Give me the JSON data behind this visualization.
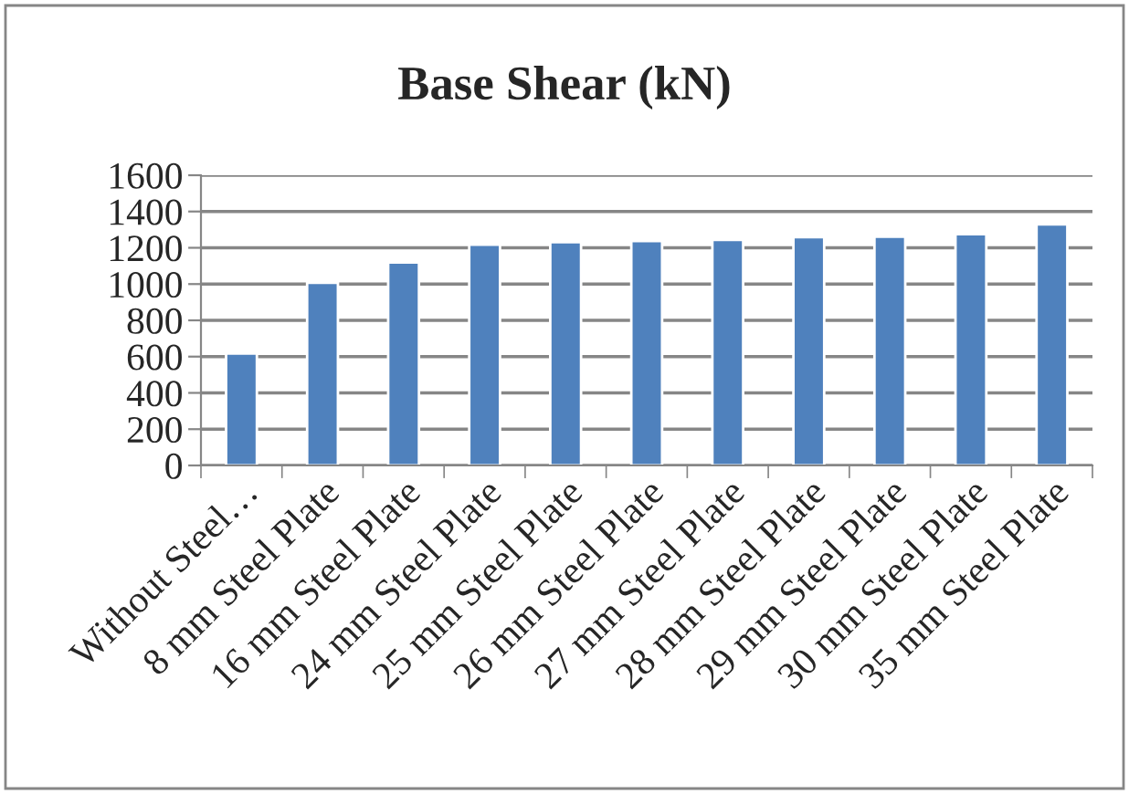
{
  "chart_data": {
    "type": "bar",
    "title": "Base Shear (kN)",
    "categories": [
      "Without Steel…",
      "8 mm Steel Plate",
      "16 mm Steel Plate",
      "24 mm Steel Plate",
      "25 mm Steel Plate",
      "26 mm Steel Plate",
      "27 mm Steel Plate",
      "28 mm Steel Plate",
      "29 mm Steel Plate",
      "30 mm Steel Plate",
      "35 mm Steel Plate"
    ],
    "values": [
      617,
      1007,
      1119,
      1217,
      1231,
      1237,
      1244,
      1258,
      1261,
      1275,
      1329
    ],
    "color": "#4f81bd",
    "ylim": [
      0,
      1600
    ],
    "yticks": [
      0,
      200,
      400,
      600,
      800,
      1000,
      1200,
      1400,
      1600
    ],
    "grid": "y",
    "legend": false
  }
}
